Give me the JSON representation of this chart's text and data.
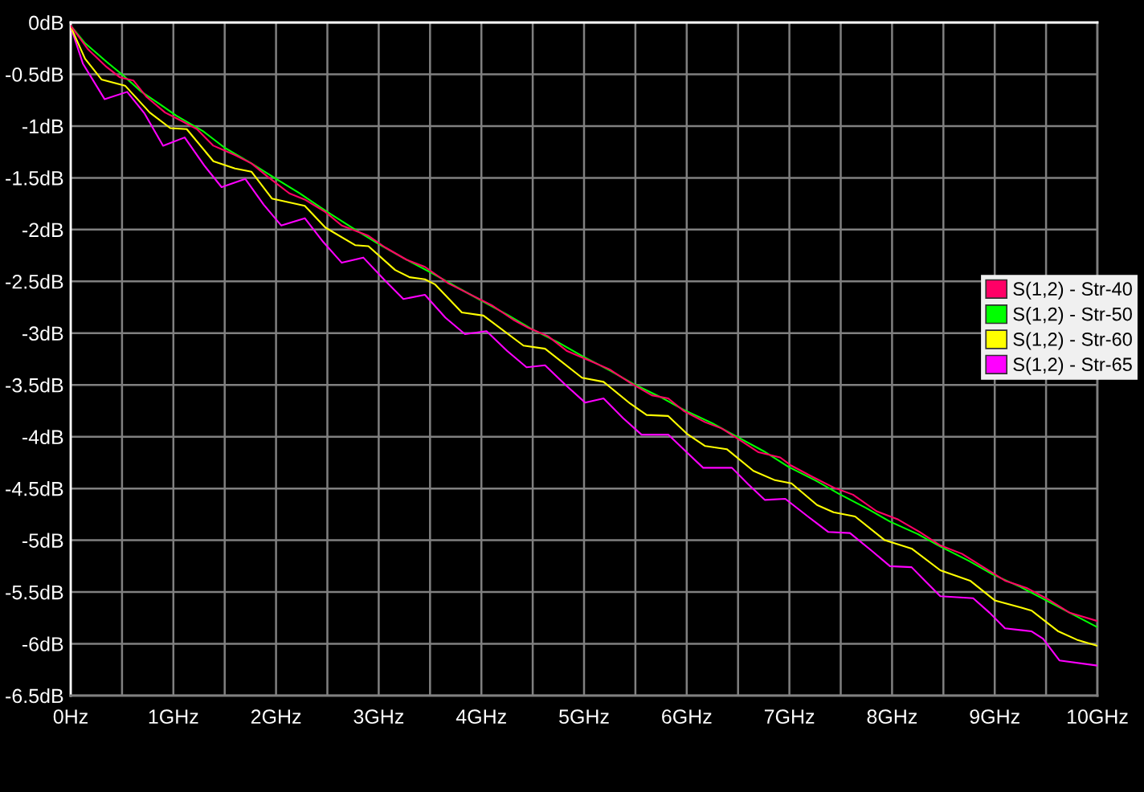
{
  "chart_data": {
    "type": "line",
    "xlim": [
      0,
      10
    ],
    "xticks": [
      {
        "value": 0,
        "label": "0Hz"
      },
      {
        "value": 0.5,
        "label": null
      },
      {
        "value": 1,
        "label": "1GHz"
      },
      {
        "value": 1.5,
        "label": null
      },
      {
        "value": 2,
        "label": "2GHz"
      },
      {
        "value": 2.5,
        "label": null
      },
      {
        "value": 3,
        "label": "3GHz"
      },
      {
        "value": 3.5,
        "label": null
      },
      {
        "value": 4,
        "label": "4GHz"
      },
      {
        "value": 4.5,
        "label": null
      },
      {
        "value": 5,
        "label": "5GHz"
      },
      {
        "value": 5.5,
        "label": null
      },
      {
        "value": 6,
        "label": "6GHz"
      },
      {
        "value": 6.5,
        "label": null
      },
      {
        "value": 7,
        "label": "7GHz"
      },
      {
        "value": 7.5,
        "label": null
      },
      {
        "value": 8,
        "label": "8GHz"
      },
      {
        "value": 8.5,
        "label": null
      },
      {
        "value": 9,
        "label": "9GHz"
      },
      {
        "value": 9.5,
        "label": null
      },
      {
        "value": 10,
        "label": "10GHz"
      }
    ],
    "ylim": [
      -6.5,
      0
    ],
    "yticks": [
      {
        "value": 0,
        "label": "0dB"
      },
      {
        "value": -0.5,
        "label": "-0.5dB"
      },
      {
        "value": -1,
        "label": "-1dB"
      },
      {
        "value": -1.5,
        "label": "-1.5dB"
      },
      {
        "value": -2,
        "label": "-2dB"
      },
      {
        "value": -2.5,
        "label": "-2.5dB"
      },
      {
        "value": -3,
        "label": "-3dB"
      },
      {
        "value": -3.5,
        "label": "-3.5dB"
      },
      {
        "value": -4,
        "label": "-4dB"
      },
      {
        "value": -4.5,
        "label": "-4.5dB"
      },
      {
        "value": -5,
        "label": "-5dB"
      },
      {
        "value": -5.5,
        "label": "-5.5dB"
      },
      {
        "value": -6,
        "label": "-6dB"
      },
      {
        "value": -6.5,
        "label": "-6.5dB"
      }
    ],
    "grid": true,
    "legend": "right",
    "marker": "none",
    "line_style": "solid",
    "series": [
      {
        "name": "S(1,2) - Str-40",
        "color": "#ff0066",
        "x": [
          0,
          0.17,
          0.35,
          0.48,
          0.61,
          0.74,
          0.92,
          1.08,
          1.23,
          1.39,
          1.6,
          1.76,
          1.92,
          2.13,
          2.28,
          2.48,
          2.64,
          2.9,
          3.06,
          3.27,
          3.45,
          3.68,
          3.92,
          4.1,
          4.31,
          4.46,
          4.65,
          4.83,
          5.04,
          5.25,
          5.45,
          5.66,
          5.82,
          5.97,
          6.18,
          6.34,
          6.5,
          6.7,
          6.91,
          7.02,
          7.23,
          7.43,
          7.62,
          7.85,
          8.06,
          8.27,
          8.47,
          8.68,
          8.89,
          9.1,
          9.31,
          9.52,
          9.73,
          10
        ],
        "values": [
          -0.03,
          -0.26,
          -0.43,
          -0.53,
          -0.56,
          -0.72,
          -0.87,
          -0.95,
          -1.03,
          -1.19,
          -1.28,
          -1.36,
          -1.49,
          -1.65,
          -1.71,
          -1.83,
          -1.96,
          -2.06,
          -2.17,
          -2.29,
          -2.36,
          -2.52,
          -2.64,
          -2.73,
          -2.87,
          -2.95,
          -3.03,
          -3.17,
          -3.26,
          -3.35,
          -3.48,
          -3.6,
          -3.63,
          -3.75,
          -3.86,
          -3.92,
          -4.02,
          -4.15,
          -4.2,
          -4.28,
          -4.39,
          -4.49,
          -4.56,
          -4.72,
          -4.8,
          -4.92,
          -5.05,
          -5.13,
          -5.26,
          -5.39,
          -5.46,
          -5.57,
          -5.7,
          -5.78
        ]
      },
      {
        "name": "S(1,2) - Str-50",
        "color": "#00ff00",
        "x": [
          0,
          0.14,
          0.35,
          0.51,
          0.69,
          0.87,
          1.03,
          1.29,
          1.5,
          1.76,
          2.0,
          2.23,
          2.5,
          2.74,
          3.0,
          3.25,
          3.5,
          3.75,
          3.99,
          4.25,
          4.49,
          4.75,
          4.98,
          5.25,
          5.48,
          5.75,
          5.97,
          6.25,
          6.47,
          6.75,
          6.99,
          7.25,
          7.48,
          7.75,
          7.98,
          8.25,
          8.47,
          8.75,
          8.98,
          9.25,
          9.5,
          9.75,
          10
        ],
        "values": [
          -0.03,
          -0.2,
          -0.38,
          -0.51,
          -0.67,
          -0.79,
          -0.9,
          -1.05,
          -1.21,
          -1.36,
          -1.51,
          -1.65,
          -1.83,
          -1.98,
          -2.14,
          -2.28,
          -2.41,
          -2.55,
          -2.68,
          -2.82,
          -2.96,
          -3.09,
          -3.22,
          -3.36,
          -3.49,
          -3.62,
          -3.74,
          -3.87,
          -3.99,
          -4.14,
          -4.29,
          -4.42,
          -4.55,
          -4.69,
          -4.82,
          -4.94,
          -5.06,
          -5.2,
          -5.33,
          -5.45,
          -5.58,
          -5.71,
          -5.84
        ]
      },
      {
        "name": "S(1,2) - Str-60",
        "color": "#ffff00",
        "x": [
          0,
          0.14,
          0.3,
          0.53,
          0.77,
          0.97,
          1.13,
          1.39,
          1.6,
          1.76,
          1.96,
          2.28,
          2.48,
          2.77,
          2.9,
          3.16,
          3.3,
          3.45,
          3.55,
          3.81,
          4.02,
          4.41,
          4.62,
          4.98,
          5.19,
          5.45,
          5.61,
          5.82,
          6.0,
          6.18,
          6.39,
          6.65,
          6.86,
          7.02,
          7.27,
          7.43,
          7.64,
          7.93,
          8.19,
          8.47,
          8.76,
          9.0,
          9.26,
          9.36,
          9.62,
          9.8,
          10
        ],
        "values": [
          -0.04,
          -0.35,
          -0.55,
          -0.61,
          -0.87,
          -1.02,
          -1.03,
          -1.34,
          -1.41,
          -1.44,
          -1.7,
          -1.77,
          -1.98,
          -2.15,
          -2.16,
          -2.39,
          -2.46,
          -2.48,
          -2.53,
          -2.8,
          -2.83,
          -3.12,
          -3.15,
          -3.43,
          -3.47,
          -3.68,
          -3.79,
          -3.8,
          -3.97,
          -4.09,
          -4.12,
          -4.33,
          -4.42,
          -4.45,
          -4.66,
          -4.73,
          -4.77,
          -5.0,
          -5.08,
          -5.29,
          -5.39,
          -5.58,
          -5.65,
          -5.68,
          -5.88,
          -5.96,
          -6.02
        ]
      },
      {
        "name": "S(1,2) - Str-65",
        "color": "#ff00ff",
        "x": [
          0,
          0.12,
          0.33,
          0.55,
          0.72,
          0.9,
          1.11,
          1.3,
          1.47,
          1.7,
          1.88,
          2.05,
          2.28,
          2.46,
          2.64,
          2.85,
          3.05,
          3.24,
          3.45,
          3.65,
          3.84,
          4.05,
          4.25,
          4.44,
          4.62,
          4.82,
          5.01,
          5.19,
          5.38,
          5.56,
          5.82,
          6.0,
          6.16,
          6.44,
          6.6,
          6.76,
          6.96,
          7.18,
          7.38,
          7.59,
          7.8,
          7.98,
          8.19,
          8.33,
          8.47,
          8.79,
          8.95,
          9.1,
          9.36,
          9.47,
          9.63,
          10
        ],
        "values": [
          -0.04,
          -0.4,
          -0.74,
          -0.67,
          -0.88,
          -1.19,
          -1.11,
          -1.38,
          -1.59,
          -1.51,
          -1.76,
          -1.96,
          -1.89,
          -2.12,
          -2.32,
          -2.27,
          -2.48,
          -2.67,
          -2.63,
          -2.85,
          -3.01,
          -2.98,
          -3.17,
          -3.33,
          -3.31,
          -3.5,
          -3.67,
          -3.63,
          -3.82,
          -3.98,
          -3.98,
          -4.15,
          -4.3,
          -4.3,
          -4.46,
          -4.61,
          -4.6,
          -4.77,
          -4.92,
          -4.93,
          -5.1,
          -5.25,
          -5.26,
          -5.4,
          -5.54,
          -5.56,
          -5.7,
          -5.85,
          -5.88,
          -5.95,
          -6.16,
          -6.21
        ]
      }
    ]
  }
}
